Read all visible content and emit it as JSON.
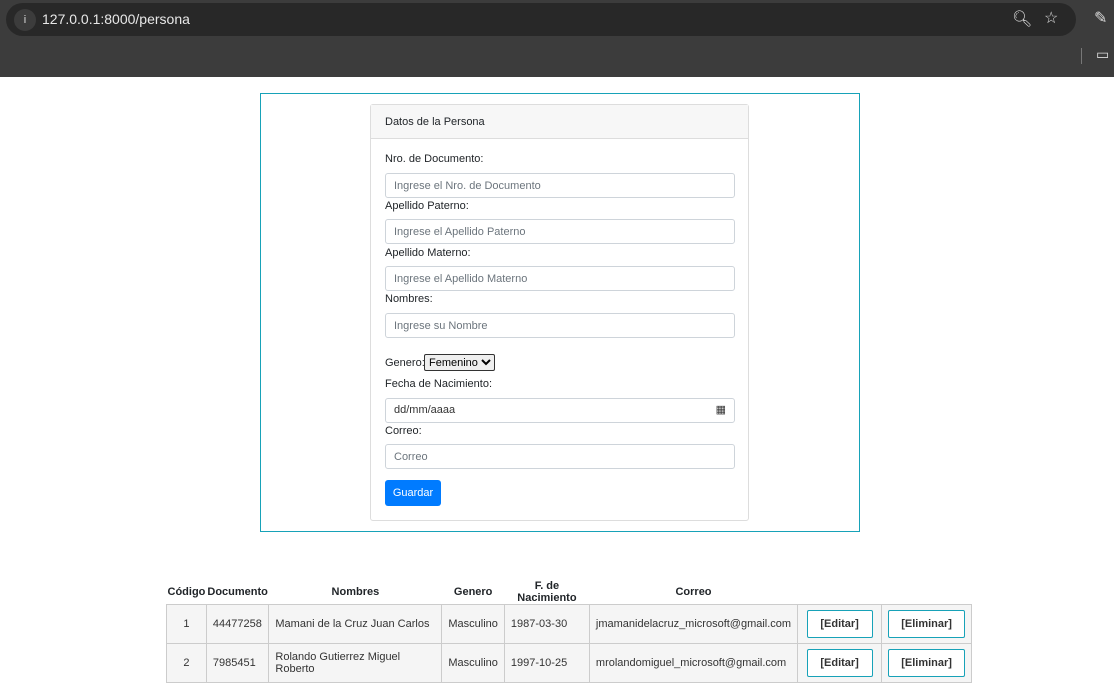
{
  "browser": {
    "url": "127.0.0.1:8000/persona"
  },
  "form": {
    "title": "Datos de la Persona",
    "documento": {
      "label": "Nro. de Documento:",
      "placeholder": "Ingrese el Nro. de Documento"
    },
    "paterno": {
      "label": "Apellido Paterno:",
      "placeholder": "Ingrese el Apellido Paterno"
    },
    "materno": {
      "label": "Apellido Materno:",
      "placeholder": "Ingrese el Apellido Materno"
    },
    "nombres": {
      "label": "Nombres:",
      "placeholder": "Ingrese su Nombre"
    },
    "genero": {
      "label": "Genero:",
      "value": "Femenino"
    },
    "fecha": {
      "label": "Fecha de Nacimiento:",
      "placeholder": "dd/mm/aaaa"
    },
    "correo": {
      "label": "Correo:",
      "placeholder": "Correo"
    },
    "submit": "Guardar"
  },
  "table": {
    "headers": [
      "Código",
      "Documento",
      "Nombres",
      "Genero",
      "F. de Nacimiento",
      "Correo"
    ],
    "rows": [
      {
        "codigo": "1",
        "documento": "44477258",
        "nombres": "Mamani de la Cruz Juan Carlos",
        "genero": "Masculino",
        "fecha": "1987-03-30",
        "correo": "jmamanidelacruz_microsoft@gmail.com",
        "edit": "[Editar]",
        "delete": "[Eliminar]"
      },
      {
        "codigo": "2",
        "documento": "7985451",
        "nombres": "Rolando Gutierrez Miguel Roberto",
        "genero": "Masculino",
        "fecha": "1997-10-25",
        "correo": "mrolandomiguel_microsoft@gmail.com",
        "edit": "[Editar]",
        "delete": "[Eliminar]"
      }
    ]
  }
}
